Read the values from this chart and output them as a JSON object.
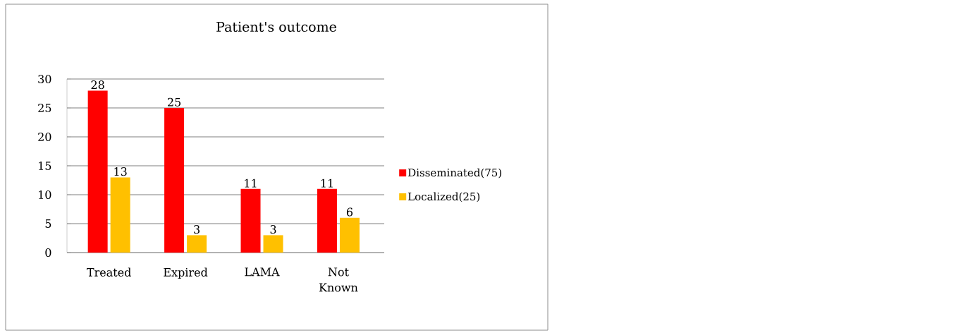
{
  "chart_data": {
    "type": "bar",
    "title": "Patient's outcome",
    "categories": [
      "Treated",
      "Expired",
      "LAMA",
      "Not Known"
    ],
    "series": [
      {
        "name": "Disseminated(75)",
        "color": "#ff0000",
        "values": [
          28,
          25,
          11,
          11
        ]
      },
      {
        "name": "Localized(25)",
        "color": "#ffc000",
        "values": [
          13,
          3,
          3,
          6
        ]
      }
    ],
    "ylim": [
      0,
      30
    ],
    "yticks": [
      0,
      5,
      10,
      15,
      20,
      25,
      30
    ],
    "grid": "y",
    "legend": "right",
    "data_labels": true
  }
}
